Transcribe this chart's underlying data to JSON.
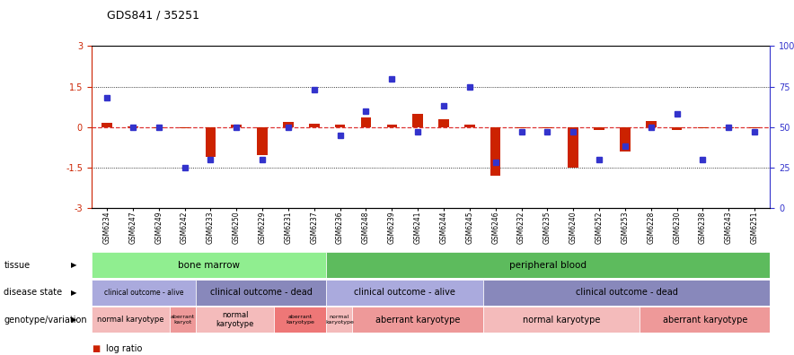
{
  "title": "GDS841 / 35251",
  "samples": [
    "GSM6234",
    "GSM6247",
    "GSM6249",
    "GSM6242",
    "GSM6233",
    "GSM6250",
    "GSM6229",
    "GSM6231",
    "GSM6237",
    "GSM6236",
    "GSM6248",
    "GSM6239",
    "GSM6241",
    "GSM6244",
    "GSM6245",
    "GSM6246",
    "GSM6232",
    "GSM6235",
    "GSM6240",
    "GSM6252",
    "GSM6253",
    "GSM6228",
    "GSM6230",
    "GSM6238",
    "GSM6243",
    "GSM6251"
  ],
  "log_ratio": [
    0.15,
    0.03,
    -0.05,
    -0.05,
    -1.1,
    0.08,
    -1.05,
    0.18,
    0.12,
    0.08,
    0.35,
    0.1,
    0.5,
    0.28,
    0.08,
    -1.8,
    -0.05,
    -0.05,
    -1.5,
    -0.1,
    -0.9,
    0.22,
    -0.12,
    -0.05,
    -0.05,
    -0.05
  ],
  "percentile": [
    68,
    50,
    50,
    25,
    30,
    50,
    30,
    50,
    73,
    45,
    60,
    80,
    47,
    63,
    75,
    28,
    47,
    47,
    47,
    30,
    38,
    50,
    58,
    30,
    50,
    47
  ],
  "tissue_groups": [
    {
      "label": "bone marrow",
      "start": 0,
      "end": 8,
      "color": "#90EE90"
    },
    {
      "label": "peripheral blood",
      "start": 9,
      "end": 25,
      "color": "#5DBB5D"
    }
  ],
  "disease_groups": [
    {
      "label": "clinical outcome - alive",
      "start": 0,
      "end": 3,
      "color": "#AAAADD"
    },
    {
      "label": "clinical outcome - dead",
      "start": 4,
      "end": 8,
      "color": "#8888BB"
    },
    {
      "label": "clinical outcome - alive",
      "start": 9,
      "end": 14,
      "color": "#AAAADD"
    },
    {
      "label": "clinical outcome - dead",
      "start": 15,
      "end": 25,
      "color": "#8888BB"
    }
  ],
  "genotype_groups": [
    {
      "label": "normal karyotype",
      "start": 0,
      "end": 2,
      "color": "#F4BBBB"
    },
    {
      "label": "aberrant\nkaryot",
      "start": 3,
      "end": 3,
      "color": "#EE9999"
    },
    {
      "label": "normal\nkaryotype",
      "start": 4,
      "end": 6,
      "color": "#F4BBBB"
    },
    {
      "label": "aberrant\nkaryotype",
      "start": 7,
      "end": 8,
      "color": "#EE7777"
    },
    {
      "label": "normal\nkaryotype",
      "start": 9,
      "end": 9,
      "color": "#F4BBBB"
    },
    {
      "label": "aberrant karyotype",
      "start": 10,
      "end": 14,
      "color": "#EE9999"
    },
    {
      "label": "normal karyotype",
      "start": 15,
      "end": 20,
      "color": "#F4BBBB"
    },
    {
      "label": "aberrant karyotype",
      "start": 21,
      "end": 25,
      "color": "#EE9999"
    }
  ],
  "bar_color": "#CC2200",
  "dot_color": "#3333CC",
  "zero_line_color": "#DD3333",
  "left_axis_color": "#CC2200",
  "right_axis_color": "#3333CC",
  "background_color": "#ffffff"
}
